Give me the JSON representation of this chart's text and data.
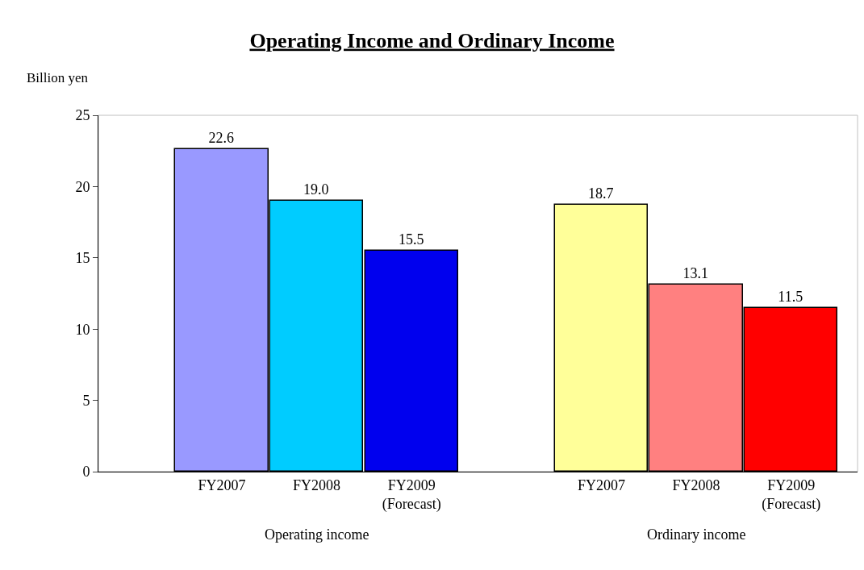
{
  "chart_data": {
    "type": "bar",
    "title": "Operating Income and Ordinary Income",
    "ylabel": "Billion yen",
    "categories": [
      "FY2007",
      "FY2008",
      "FY2009\n(Forecast)",
      null,
      "FY2007",
      "FY2008",
      "FY2009\n(Forecast)"
    ],
    "values": [
      22.6,
      19.0,
      15.5,
      null,
      18.7,
      13.1,
      11.5
    ],
    "colors": [
      "#9999ff",
      "#00ccff",
      "#0000ee",
      null,
      "#ffff99",
      "#ff8080",
      "#ff0000"
    ],
    "value_labels": [
      "22.6",
      "19.0",
      "15.5",
      null,
      "18.7",
      "13.1",
      "11.5"
    ],
    "ylim": [
      0,
      25
    ],
    "yticks": [
      0,
      5,
      10,
      15,
      20,
      25
    ],
    "annotations": [
      "Operating income",
      "Ordinary income"
    ]
  }
}
